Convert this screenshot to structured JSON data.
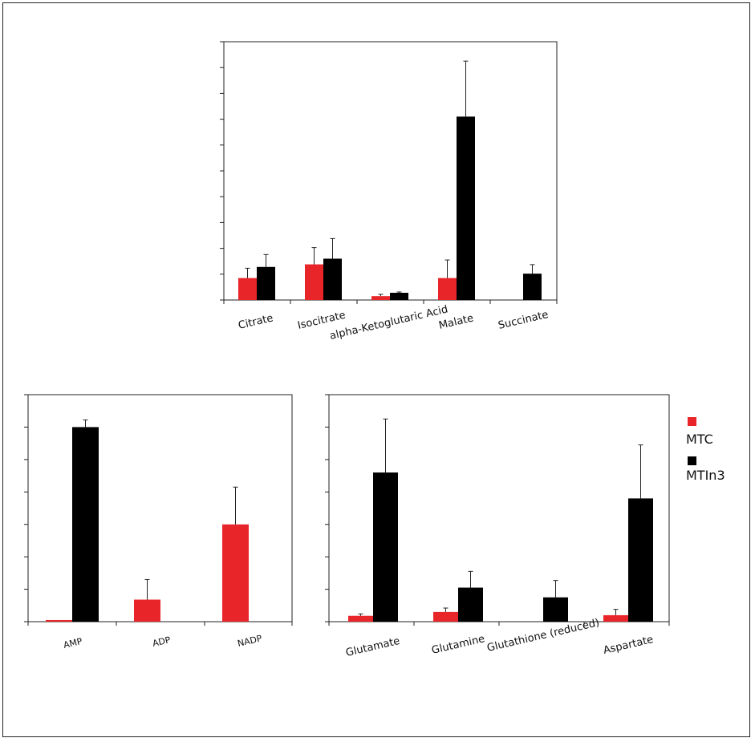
{
  "colors": {
    "MTC": "#e8262a",
    "MTIn3": "#000000"
  },
  "legend": [
    {
      "name": "MTC",
      "color": "#e8262a"
    },
    {
      "name": "MTIn3",
      "color": "#000000"
    }
  ],
  "chart_data": [
    {
      "type": "bar",
      "categories": [
        "Citrate",
        "Isocitrate",
        "alpha-Ketoglutaric Acid",
        "Malate",
        "Succinate"
      ],
      "ylim": [
        0,
        100
      ],
      "yticks": 10,
      "series": [
        {
          "name": "MTC",
          "values": [
            8.5,
            13.8,
            1.5,
            8.5,
            0
          ],
          "errors": [
            3.8,
            6.5,
            0.7,
            7.0,
            0
          ]
        },
        {
          "name": "MTIn3",
          "values": [
            12.8,
            16.0,
            2.8,
            71.0,
            10.2
          ],
          "errors": [
            4.8,
            7.8,
            0.3,
            21.5,
            3.5
          ]
        }
      ]
    },
    {
      "type": "bar",
      "categories": [
        "AMP",
        "ADP",
        "NADP"
      ],
      "ylim": [
        0,
        7
      ],
      "yticks": 7,
      "series": [
        {
          "name": "MTC",
          "values": [
            0.05,
            0.68,
            3.0
          ],
          "errors": [
            0,
            0.62,
            1.15
          ]
        },
        {
          "name": "MTIn3",
          "values": [
            6.0,
            0,
            0
          ],
          "errors": [
            0.22,
            0,
            0
          ]
        }
      ]
    },
    {
      "type": "bar",
      "categories": [
        "Glutamate",
        "Glutamine",
        "Glutathione (reduced)",
        "Aspartate"
      ],
      "ylim": [
        0,
        7
      ],
      "yticks": 7,
      "series": [
        {
          "name": "MTC",
          "values": [
            0.18,
            0.3,
            0,
            0.2
          ],
          "errors": [
            0.06,
            0.12,
            0,
            0.18
          ]
        },
        {
          "name": "MTIn3",
          "values": [
            4.6,
            1.05,
            0.75,
            3.8
          ],
          "errors": [
            1.65,
            0.5,
            0.52,
            1.65
          ]
        }
      ]
    }
  ]
}
